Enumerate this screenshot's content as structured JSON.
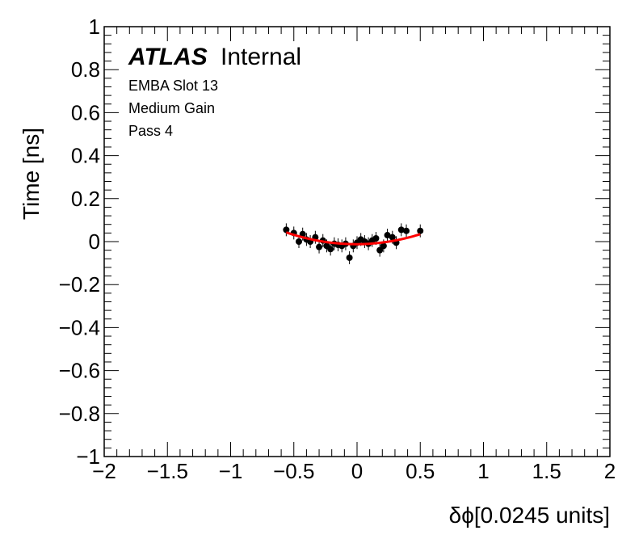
{
  "chart_data": {
    "type": "scatter",
    "xlabel": "δϕ[0.0245 units]",
    "ylabel": "Time [ns]",
    "xlim": [
      -2,
      2
    ],
    "ylim": [
      -1,
      1
    ],
    "x_ticks": [
      "−2",
      "−1.5",
      "−1",
      "−0.5",
      "0",
      "0.5",
      "1",
      "1.5",
      "2"
    ],
    "x_tick_values": [
      -2,
      -1.5,
      -1,
      -0.5,
      0,
      0.5,
      1,
      1.5,
      2
    ],
    "y_ticks": [
      "1",
      "0.8",
      "0.6",
      "0.4",
      "0.2",
      "0",
      "−0.2",
      "−0.4",
      "−0.6",
      "−0.8",
      "−1"
    ],
    "y_tick_values": [
      1,
      0.8,
      0.6,
      0.4,
      0.2,
      0,
      -0.2,
      -0.4,
      -0.6,
      -0.8,
      -1
    ],
    "grid": false,
    "labels": {
      "atlas": "ATLAS",
      "internal": "Internal",
      "line1": "EMBA Slot 13",
      "line2": "Medium Gain",
      "line3": "Pass 4"
    },
    "points": [
      {
        "x": -0.56,
        "y": 0.055
      },
      {
        "x": -0.5,
        "y": 0.04
      },
      {
        "x": -0.46,
        "y": 0.0
      },
      {
        "x": -0.43,
        "y": 0.035
      },
      {
        "x": -0.4,
        "y": 0.01
      },
      {
        "x": -0.37,
        "y": 0.0
      },
      {
        "x": -0.33,
        "y": 0.02
      },
      {
        "x": -0.3,
        "y": -0.025
      },
      {
        "x": -0.27,
        "y": 0.005
      },
      {
        "x": -0.24,
        "y": -0.02
      },
      {
        "x": -0.21,
        "y": -0.035
      },
      {
        "x": -0.18,
        "y": -0.01
      },
      {
        "x": -0.15,
        "y": -0.015
      },
      {
        "x": -0.12,
        "y": -0.02
      },
      {
        "x": -0.09,
        "y": -0.01
      },
      {
        "x": -0.06,
        "y": -0.075
      },
      {
        "x": -0.03,
        "y": -0.02
      },
      {
        "x": 0.0,
        "y": -0.005
      },
      {
        "x": 0.03,
        "y": 0.01
      },
      {
        "x": 0.06,
        "y": 0.0
      },
      {
        "x": 0.09,
        "y": -0.01
      },
      {
        "x": 0.12,
        "y": 0.005
      },
      {
        "x": 0.15,
        "y": 0.015
      },
      {
        "x": 0.18,
        "y": -0.04
      },
      {
        "x": 0.21,
        "y": -0.02
      },
      {
        "x": 0.24,
        "y": 0.03
      },
      {
        "x": 0.28,
        "y": 0.02
      },
      {
        "x": 0.31,
        "y": -0.005
      },
      {
        "x": 0.35,
        "y": 0.055
      },
      {
        "x": 0.39,
        "y": 0.05
      },
      {
        "x": 0.5,
        "y": 0.05
      }
    ],
    "y_error": 0.03,
    "x_error": 0.012,
    "fit": {
      "type": "quadratic",
      "coefficients": [
        -0.012,
        0.003,
        0.18
      ],
      "x_range": [
        -0.56,
        0.5
      ],
      "color": "#ff0000"
    },
    "marker_color": "#000000"
  }
}
